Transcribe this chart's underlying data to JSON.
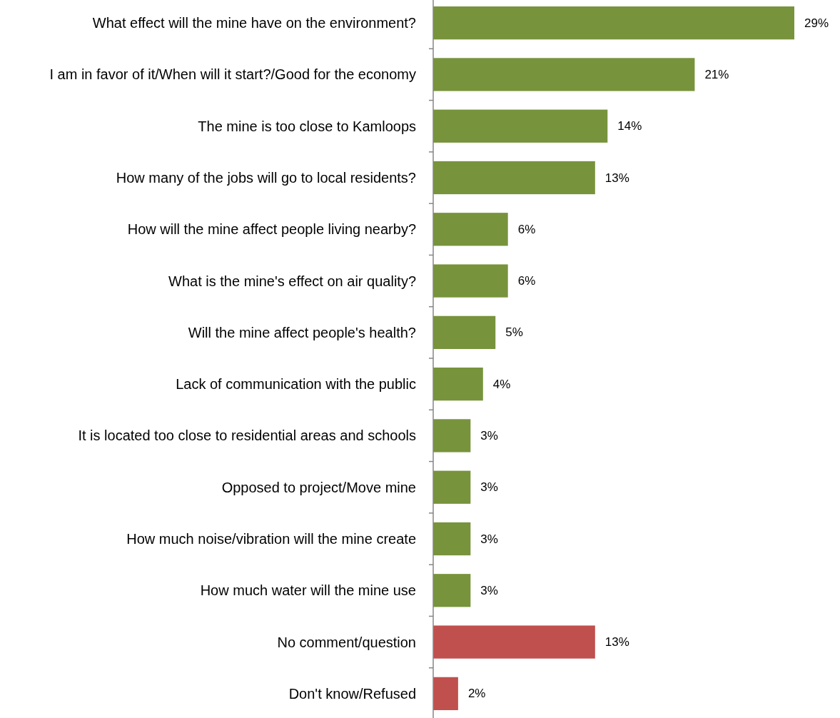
{
  "chart_data": {
    "type": "bar",
    "orientation": "horizontal",
    "categories": [
      "What effect will the mine have on the environment?",
      "I am in favor of it/When will it start?/Good for the economy",
      "The mine is too close to Kamloops",
      "How many of the jobs will go to local residents?",
      "How will the mine affect people living nearby?",
      "What is the mine's effect on air quality?",
      "Will the mine affect people's health?",
      "Lack of communication with the public",
      "It is located too close to residential areas and schools",
      "Opposed to project/Move mine",
      "How much noise/vibration will the mine create",
      "How much water will the mine use",
      "No comment/question",
      "Don't know/Refused"
    ],
    "values": [
      29,
      21,
      14,
      13,
      6,
      6,
      5,
      4,
      3,
      3,
      3,
      3,
      13,
      2
    ],
    "value_labels": [
      "29%",
      "21%",
      "14%",
      "13%",
      "6%",
      "6%",
      "5%",
      "4%",
      "3%",
      "3%",
      "3%",
      "3%",
      "13%",
      "2%"
    ],
    "colors": [
      "#77933c",
      "#77933c",
      "#77933c",
      "#77933c",
      "#77933c",
      "#77933c",
      "#77933c",
      "#77933c",
      "#77933c",
      "#77933c",
      "#77933c",
      "#77933c",
      "#c0504d",
      "#c0504d"
    ]
  }
}
